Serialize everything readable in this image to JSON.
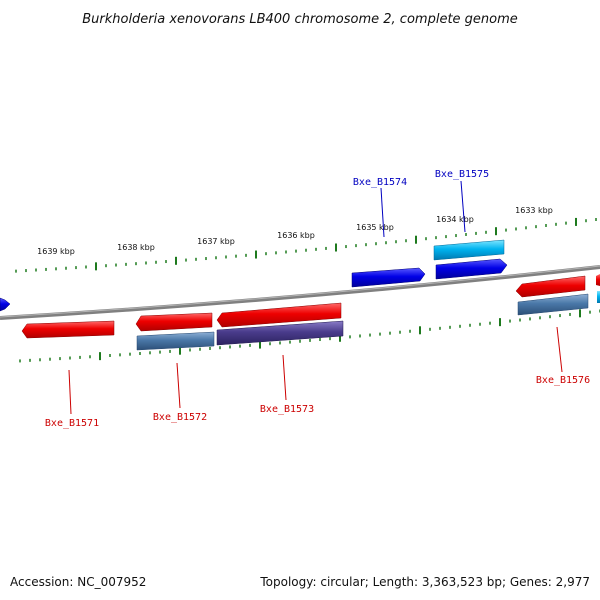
{
  "title": "Burkholderia xenovorans LB400 chromosome 2, complete genome",
  "footer": {
    "accession": "Accession: NC_007952",
    "summary": "Topology: circular; Length: 3,363,523 bp; Genes: 2,977"
  },
  "colors": {
    "backbone": "#808080",
    "tick": "#1e7a1e",
    "forward_gene": "#0000e0",
    "forward_gene_alt": "#00b4f0",
    "reverse_gene": "#e60000",
    "reverse_gene_alt_steel": "#4a78a8",
    "reverse_gene_alt_purple": "#4a3c8c",
    "forward_label": "#0000c0",
    "reverse_label": "#cc0000"
  },
  "scale_labels": [
    "1639 kbp",
    "1638 kbp",
    "1637 kbp",
    "1636 kbp",
    "1635 kbp",
    "1634 kbp",
    "1633 kbp"
  ],
  "gene_labels": {
    "Bxe_B1571": "Bxe_B1571",
    "Bxe_B1572": "Bxe_B1572",
    "Bxe_B1573": "Bxe_B1573",
    "Bxe_B1574": "Bxe_B1574",
    "Bxe_B1575": "Bxe_B1575",
    "Bxe_B1576": "Bxe_B1576"
  }
}
